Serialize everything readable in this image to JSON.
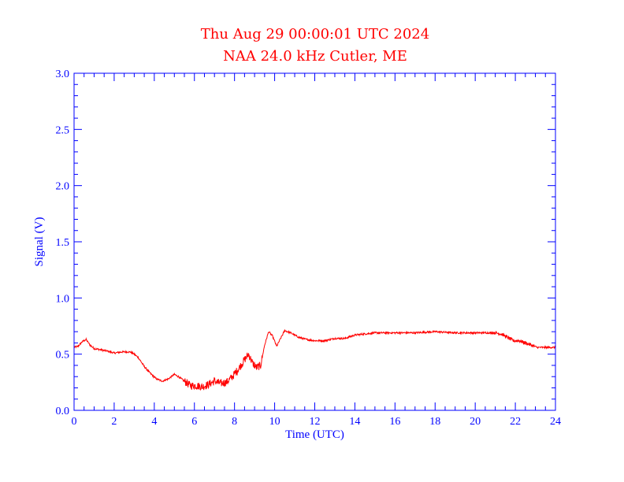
{
  "chart_data": {
    "type": "line",
    "title": "Thu Aug 29 00:00:01 UTC 2024",
    "subtitle": "NAA 24.0 kHz Cutler, ME",
    "xlabel": "Time (UTC)",
    "ylabel": "Signal (V)",
    "xlim": [
      0,
      24
    ],
    "ylim": [
      0,
      3.0
    ],
    "x_ticks": [
      0,
      2,
      4,
      6,
      8,
      10,
      12,
      14,
      16,
      18,
      20,
      22,
      24
    ],
    "x_tick_labels": [
      "0",
      "2",
      "4",
      "6",
      "8",
      "10",
      "12",
      "14",
      "16",
      "18",
      "20",
      "22",
      "24"
    ],
    "y_ticks": [
      0,
      0.5,
      1.0,
      1.5,
      2.0,
      2.5,
      3.0
    ],
    "y_tick_labels": [
      "0.0",
      "0.5",
      "1.0",
      "1.5",
      "2.0",
      "2.5",
      "3.0"
    ],
    "series": [
      {
        "name": "NAA 24.0 kHz",
        "color": "#ff0000",
        "x": [
          0.0,
          0.2,
          0.4,
          0.6,
          0.8,
          1.0,
          1.3,
          1.6,
          2.0,
          2.4,
          2.8,
          3.0,
          3.2,
          3.5,
          3.8,
          4.1,
          4.4,
          4.7,
          5.0,
          5.2,
          5.5,
          5.8,
          6.1,
          6.4,
          6.7,
          7.0,
          7.3,
          7.6,
          7.9,
          8.2,
          8.5,
          8.7,
          8.9,
          9.1,
          9.3,
          9.5,
          9.7,
          9.9,
          10.1,
          10.3,
          10.5,
          10.8,
          11.2,
          11.6,
          12.0,
          12.5,
          13.0,
          13.5,
          14.0,
          14.5,
          15.0,
          15.5,
          16.0,
          17.0,
          18.0,
          19.0,
          20.0,
          21.0,
          21.3,
          21.6,
          21.9,
          22.2,
          22.5,
          22.8,
          23.1,
          23.5,
          24.0
        ],
        "y": [
          0.56,
          0.57,
          0.61,
          0.63,
          0.58,
          0.55,
          0.54,
          0.53,
          0.51,
          0.52,
          0.52,
          0.5,
          0.47,
          0.39,
          0.33,
          0.28,
          0.26,
          0.28,
          0.32,
          0.3,
          0.26,
          0.22,
          0.22,
          0.21,
          0.23,
          0.26,
          0.24,
          0.25,
          0.3,
          0.37,
          0.45,
          0.5,
          0.42,
          0.38,
          0.4,
          0.58,
          0.7,
          0.66,
          0.57,
          0.64,
          0.71,
          0.69,
          0.65,
          0.63,
          0.62,
          0.62,
          0.64,
          0.64,
          0.67,
          0.68,
          0.69,
          0.69,
          0.69,
          0.69,
          0.7,
          0.69,
          0.69,
          0.69,
          0.68,
          0.65,
          0.62,
          0.62,
          0.6,
          0.58,
          0.56,
          0.56,
          0.56
        ]
      }
    ]
  }
}
